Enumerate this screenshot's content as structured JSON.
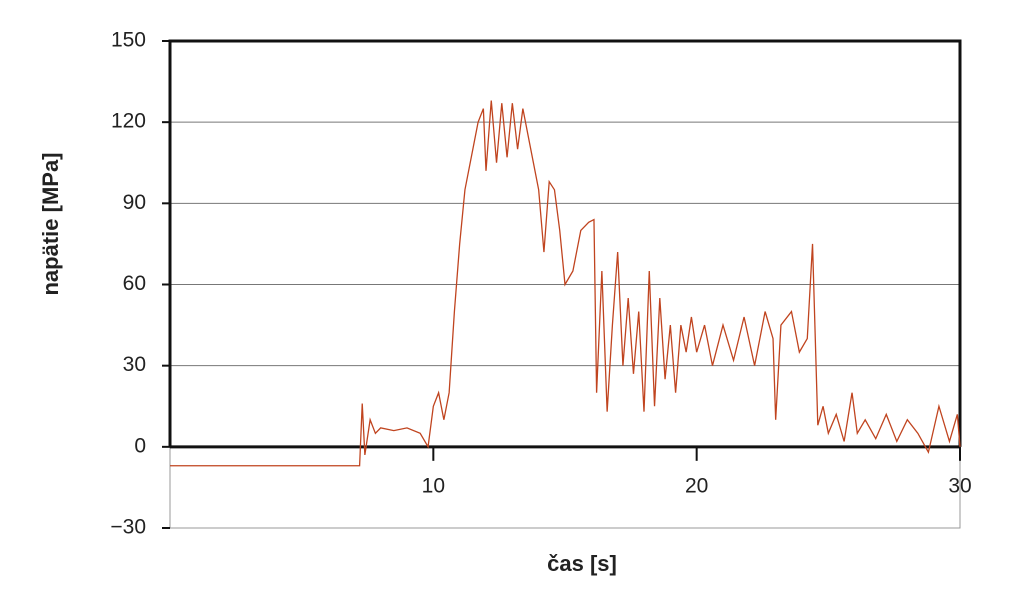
{
  "chart_data": {
    "type": "line",
    "x_label": "čas [s]",
    "y_label": "napätie [MPa]",
    "xlim": [
      0,
      30
    ],
    "ylim": [
      -30,
      150
    ],
    "xticks": [
      10,
      20,
      30
    ],
    "yticks": [
      {
        "value": -30,
        "label": "−30"
      },
      0,
      30,
      60,
      90,
      120,
      150
    ],
    "grid": true,
    "x": [
      0,
      3,
      6,
      7.1,
      7.2,
      7.3,
      7.4,
      7.6,
      7.8,
      8,
      8.5,
      9,
      9.5,
      9.8,
      10,
      10.2,
      10.4,
      10.6,
      10.8,
      11,
      11.2,
      11.5,
      11.7,
      11.9,
      12,
      12.2,
      12.4,
      12.6,
      12.8,
      13,
      13.2,
      13.4,
      13.6,
      13.8,
      14,
      14.2,
      14.4,
      14.6,
      14.8,
      15,
      15.3,
      15.6,
      15.9,
      16.1,
      16.2,
      16.4,
      16.6,
      16.8,
      17,
      17.2,
      17.4,
      17.6,
      17.8,
      18,
      18.2,
      18.4,
      18.6,
      18.8,
      19,
      19.2,
      19.4,
      19.6,
      19.8,
      20,
      20.3,
      20.6,
      21,
      21.4,
      21.8,
      22.2,
      22.6,
      22.9,
      23,
      23.2,
      23.6,
      23.9,
      24.2,
      24.4,
      24.6,
      24.8,
      25,
      25.3,
      25.6,
      25.9,
      26.1,
      26.4,
      26.8,
      27.2,
      27.6,
      28,
      28.4,
      28.8,
      29.2,
      29.6,
      29.9,
      30
    ],
    "series": [
      {
        "name": "napätie",
        "color": "#c0441f",
        "values": [
          -7,
          -7,
          -7,
          -7,
          -7,
          16,
          -3,
          10,
          5,
          7,
          6,
          7,
          5,
          0,
          15,
          20,
          10,
          20,
          50,
          75,
          95,
          110,
          120,
          125,
          102,
          128,
          105,
          127,
          107,
          127,
          110,
          125,
          115,
          105,
          95,
          72,
          98,
          95,
          80,
          60,
          65,
          80,
          83,
          84,
          20,
          65,
          13,
          45,
          72,
          30,
          55,
          27,
          50,
          13,
          65,
          15,
          55,
          25,
          45,
          20,
          45,
          35,
          48,
          35,
          45,
          30,
          45,
          32,
          48,
          30,
          50,
          40,
          10,
          45,
          50,
          35,
          40,
          75,
          8,
          15,
          5,
          12,
          2,
          20,
          5,
          10,
          3,
          12,
          2,
          10,
          5,
          -2,
          15,
          2,
          12,
          0
        ]
      }
    ]
  }
}
